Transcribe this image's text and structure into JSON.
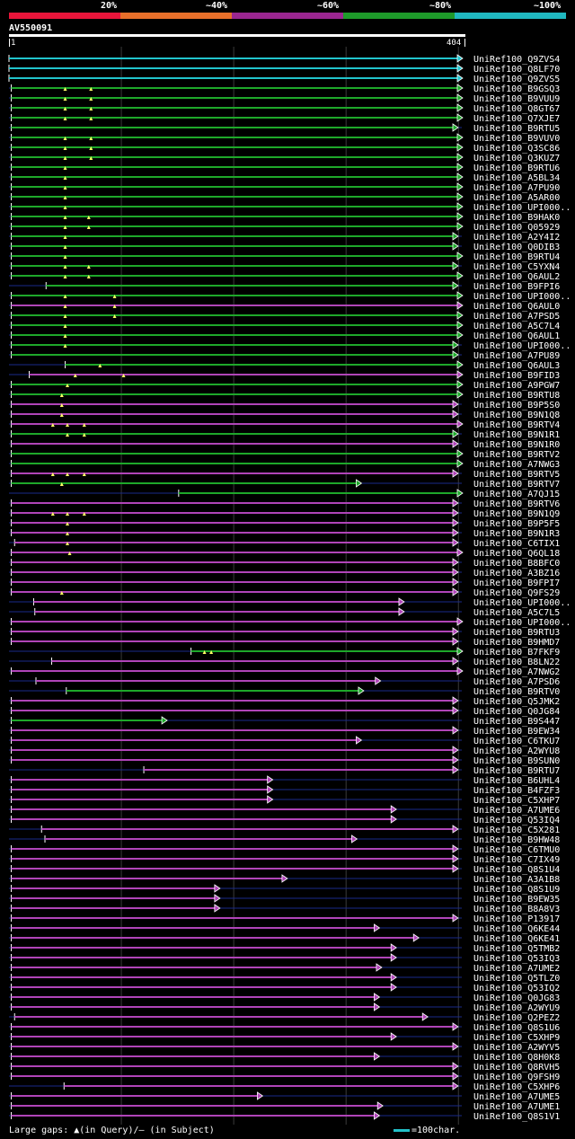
{
  "legend": {
    "colors": [
      "#e8153a",
      "#e8702a",
      "#9a2690",
      "#1e9a2a",
      "#20b8c0"
    ],
    "labels": [
      "20%",
      "~40%",
      "~60%",
      "~80%",
      "~100%"
    ]
  },
  "query": {
    "id": "AV550091",
    "start": "1",
    "end": "404",
    "length": 404
  },
  "footer": {
    "gaps_text": "Large gaps: ▲(in Query)/— (in Subject)",
    "scale_text": "=100char."
  },
  "colors": {
    "cyan": "#21c4cc",
    "green": "#1ea82a",
    "purple": "#b044b8",
    "grid": "#3a3a3a",
    "gap": "#1a2a8a"
  },
  "chart_data": {
    "type": "alignment",
    "x_range": [
      1,
      404
    ],
    "hits": [
      {
        "name": "UniRef100_Q9ZVS4",
        "identity": "~100%",
        "start": 1,
        "end": 404,
        "gaps": []
      },
      {
        "name": "UniRef100_Q8LF70",
        "identity": "~100%",
        "start": 1,
        "end": 404,
        "gaps": []
      },
      {
        "name": "UniRef100_Q9ZVS5",
        "identity": "~100%",
        "start": 1,
        "end": 404,
        "gaps": []
      },
      {
        "name": "UniRef100_B9GSQ3",
        "identity": "~80%",
        "start": 3,
        "end": 404,
        "gaps": [
          51,
          74
        ]
      },
      {
        "name": "UniRef100_B9VUU9",
        "identity": "~80%",
        "start": 3,
        "end": 404,
        "gaps": [
          51,
          74
        ]
      },
      {
        "name": "UniRef100_Q8GT67",
        "identity": "~80%",
        "start": 3,
        "end": 404,
        "gaps": [
          51,
          74
        ]
      },
      {
        "name": "UniRef100_Q7XJE7",
        "identity": "~80%",
        "start": 3,
        "end": 404,
        "gaps": [
          51,
          74
        ]
      },
      {
        "name": "UniRef100_B9RTU5",
        "identity": "~80%",
        "start": 3,
        "end": 400,
        "gaps": []
      },
      {
        "name": "UniRef100_B9VUV0",
        "identity": "~80%",
        "start": 3,
        "end": 404,
        "gaps": [
          51,
          74
        ]
      },
      {
        "name": "UniRef100_Q3SC86",
        "identity": "~80%",
        "start": 3,
        "end": 404,
        "gaps": [
          51,
          74
        ]
      },
      {
        "name": "UniRef100_Q3KUZ7",
        "identity": "~80%",
        "start": 3,
        "end": 404,
        "gaps": [
          51,
          74
        ]
      },
      {
        "name": "UniRef100_B9RTU6",
        "identity": "~80%",
        "start": 3,
        "end": 404,
        "gaps": [
          51
        ]
      },
      {
        "name": "UniRef100_A5BL34",
        "identity": "~80%",
        "start": 3,
        "end": 404,
        "gaps": [
          51
        ]
      },
      {
        "name": "UniRef100_A7PU90",
        "identity": "~80%",
        "start": 3,
        "end": 404,
        "gaps": [
          51
        ]
      },
      {
        "name": "UniRef100_A5AR00",
        "identity": "~80%",
        "start": 3,
        "end": 404,
        "gaps": [
          51
        ]
      },
      {
        "name": "UniRef100_UPI000..",
        "identity": "~80%",
        "start": 3,
        "end": 404,
        "gaps": [
          51
        ]
      },
      {
        "name": "UniRef100_B9HAK0",
        "identity": "~80%",
        "start": 3,
        "end": 404,
        "gaps": [
          51,
          72
        ]
      },
      {
        "name": "UniRef100_Q05929",
        "identity": "~80%",
        "start": 3,
        "end": 404,
        "gaps": [
          51,
          72
        ]
      },
      {
        "name": "UniRef100_A2Y4I2",
        "identity": "~80%",
        "start": 3,
        "end": 400,
        "gaps": [
          51
        ]
      },
      {
        "name": "UniRef100_Q0DIB3",
        "identity": "~80%",
        "start": 3,
        "end": 400,
        "gaps": [
          51
        ]
      },
      {
        "name": "UniRef100_B9RTU4",
        "identity": "~80%",
        "start": 3,
        "end": 404,
        "gaps": [
          51
        ]
      },
      {
        "name": "UniRef100_C5YXN4",
        "identity": "~80%",
        "start": 3,
        "end": 400,
        "gaps": [
          51,
          72
        ]
      },
      {
        "name": "UniRef100_Q6AUL2",
        "identity": "~80%",
        "start": 3,
        "end": 404,
        "gaps": [
          51,
          72
        ]
      },
      {
        "name": "UniRef100_B9FPI6",
        "identity": "~80%",
        "start": 34,
        "end": 400,
        "gaps": []
      },
      {
        "name": "UniRef100_UPI000..",
        "identity": "~80%",
        "start": 3,
        "end": 404,
        "gaps": [
          51,
          95
        ]
      },
      {
        "name": "UniRef100_Q6AUL0",
        "identity": "~60%",
        "start": 3,
        "end": 404,
        "gaps": [
          51,
          95
        ]
      },
      {
        "name": "UniRef100_A7PSD5",
        "identity": "~80%",
        "start": 3,
        "end": 404,
        "gaps": [
          51,
          95
        ]
      },
      {
        "name": "UniRef100_A5C7L4",
        "identity": "~80%",
        "start": 3,
        "end": 404,
        "gaps": [
          51
        ]
      },
      {
        "name": "UniRef100_Q6AUL1",
        "identity": "~80%",
        "start": 3,
        "end": 404,
        "gaps": [
          51
        ]
      },
      {
        "name": "UniRef100_UPI000..",
        "identity": "~80%",
        "start": 3,
        "end": 400,
        "gaps": [
          51
        ]
      },
      {
        "name": "UniRef100_A7PU89",
        "identity": "~80%",
        "start": 3,
        "end": 400,
        "gaps": []
      },
      {
        "name": "UniRef100_Q6AUL3",
        "identity": "~80%",
        "start": 51,
        "end": 404,
        "gaps": [
          82
        ]
      },
      {
        "name": "UniRef100_B9FID3",
        "identity": "~60%",
        "start": 19,
        "end": 404,
        "gaps": [
          60,
          103
        ]
      },
      {
        "name": "UniRef100_A9PGW7",
        "identity": "~80%",
        "start": 3,
        "end": 404,
        "gaps": [
          53
        ]
      },
      {
        "name": "UniRef100_B9RTU8",
        "identity": "~80%",
        "start": 3,
        "end": 404,
        "gaps": [
          48
        ]
      },
      {
        "name": "UniRef100_B9P5S0",
        "identity": "~60%",
        "start": 3,
        "end": 400,
        "gaps": [
          48
        ]
      },
      {
        "name": "UniRef100_B9N1Q8",
        "identity": "~60%",
        "start": 3,
        "end": 400,
        "gaps": [
          48
        ]
      },
      {
        "name": "UniRef100_B9RTV4",
        "identity": "~60%",
        "start": 3,
        "end": 404,
        "gaps": [
          40,
          53,
          68
        ]
      },
      {
        "name": "UniRef100_B9N1R1",
        "identity": "~80%",
        "start": 3,
        "end": 400,
        "gaps": [
          53,
          68
        ]
      },
      {
        "name": "UniRef100_B9N1R0",
        "identity": "~60%",
        "start": 3,
        "end": 400,
        "gaps": []
      },
      {
        "name": "UniRef100_B9RTV2",
        "identity": "~80%",
        "start": 3,
        "end": 404,
        "gaps": []
      },
      {
        "name": "UniRef100_A7NWG3",
        "identity": "~80%",
        "start": 3,
        "end": 404,
        "gaps": []
      },
      {
        "name": "UniRef100_B9RTV5",
        "identity": "~60%",
        "start": 3,
        "end": 400,
        "gaps": [
          40,
          53,
          68
        ]
      },
      {
        "name": "UniRef100_B9RTV7",
        "identity": "~80%",
        "start": 3,
        "end": 314,
        "gaps": [
          48
        ]
      },
      {
        "name": "UniRef100_A7QJ15",
        "identity": "~80%",
        "start": 152,
        "end": 404,
        "gaps": []
      },
      {
        "name": "UniRef100_B9RTV6",
        "identity": "~60%",
        "start": 3,
        "end": 400,
        "gaps": []
      },
      {
        "name": "UniRef100_B9N1Q9",
        "identity": "~60%",
        "start": 3,
        "end": 400,
        "gaps": [
          40,
          53,
          68
        ]
      },
      {
        "name": "UniRef100_B9P5F5",
        "identity": "~60%",
        "start": 3,
        "end": 400,
        "gaps": [
          53
        ]
      },
      {
        "name": "UniRef100_B9N1R3",
        "identity": "~60%",
        "start": 3,
        "end": 400,
        "gaps": [
          53
        ]
      },
      {
        "name": "UniRef100_C6TIX1",
        "identity": "~60%",
        "start": 6,
        "end": 400,
        "gaps": [
          53
        ]
      },
      {
        "name": "UniRef100_Q6QL18",
        "identity": "~60%",
        "start": 3,
        "end": 404,
        "gaps": [
          55
        ]
      },
      {
        "name": "UniRef100_B8BFC0",
        "identity": "~60%",
        "start": 3,
        "end": 400,
        "gaps": []
      },
      {
        "name": "UniRef100_A3BZ16",
        "identity": "~60%",
        "start": 3,
        "end": 400,
        "gaps": []
      },
      {
        "name": "UniRef100_B9FPI7",
        "identity": "~60%",
        "start": 3,
        "end": 400,
        "gaps": []
      },
      {
        "name": "UniRef100_Q9FS29",
        "identity": "~60%",
        "start": 3,
        "end": 400,
        "gaps": [
          48
        ]
      },
      {
        "name": "UniRef100_UPI000..",
        "identity": "~60%",
        "start": 23,
        "end": 352,
        "gaps": []
      },
      {
        "name": "UniRef100_A5C7L5",
        "identity": "~60%",
        "start": 24,
        "end": 352,
        "gaps": []
      },
      {
        "name": "UniRef100_UPI000..",
        "identity": "~60%",
        "start": 3,
        "end": 404,
        "gaps": []
      },
      {
        "name": "UniRef100_B9RTU3",
        "identity": "~60%",
        "start": 3,
        "end": 400,
        "gaps": []
      },
      {
        "name": "UniRef100_B9HMD7",
        "identity": "~60%",
        "start": 3,
        "end": 400,
        "gaps": []
      },
      {
        "name": "UniRef100_B7FKF9",
        "identity": "~80%",
        "start": 163,
        "end": 404,
        "gaps": [
          175,
          181
        ]
      },
      {
        "name": "UniRef100_B8LN22",
        "identity": "~60%",
        "start": 39,
        "end": 400,
        "gaps": []
      },
      {
        "name": "UniRef100_A7NWG2",
        "identity": "~60%",
        "start": 3,
        "end": 404,
        "gaps": []
      },
      {
        "name": "UniRef100_A7PSD6",
        "identity": "~60%",
        "start": 25,
        "end": 331,
        "gaps": []
      },
      {
        "name": "UniRef100_B9RTV0",
        "identity": "~80%",
        "start": 52,
        "end": 316,
        "gaps": []
      },
      {
        "name": "UniRef100_Q5JMK2",
        "identity": "~60%",
        "start": 3,
        "end": 400,
        "gaps": []
      },
      {
        "name": "UniRef100_Q0JG84",
        "identity": "~60%",
        "start": 3,
        "end": 400,
        "gaps": []
      },
      {
        "name": "UniRef100_B9S447",
        "identity": "~80%",
        "start": 3,
        "end": 141,
        "gaps": []
      },
      {
        "name": "UniRef100_B9EW34",
        "identity": "~60%",
        "start": 3,
        "end": 400,
        "gaps": []
      },
      {
        "name": "UniRef100_C6TKU7",
        "identity": "~60%",
        "start": 3,
        "end": 314,
        "gaps": []
      },
      {
        "name": "UniRef100_A2WYU8",
        "identity": "~60%",
        "start": 3,
        "end": 400,
        "gaps": []
      },
      {
        "name": "UniRef100_B9SUN0",
        "identity": "~60%",
        "start": 3,
        "end": 400,
        "gaps": []
      },
      {
        "name": "UniRef100_B9RTU7",
        "identity": "~60%",
        "start": 121,
        "end": 400,
        "gaps": []
      },
      {
        "name": "UniRef100_B6UHL4",
        "identity": "~60%",
        "start": 3,
        "end": 235,
        "gaps": []
      },
      {
        "name": "UniRef100_B4FZF3",
        "identity": "~60%",
        "start": 3,
        "end": 235,
        "gaps": []
      },
      {
        "name": "UniRef100_C5XHP7",
        "identity": "~60%",
        "start": 3,
        "end": 235,
        "gaps": []
      },
      {
        "name": "UniRef100_A7UME6",
        "identity": "~60%",
        "start": 3,
        "end": 345,
        "gaps": []
      },
      {
        "name": "UniRef100_Q53IQ4",
        "identity": "~60%",
        "start": 3,
        "end": 345,
        "gaps": []
      },
      {
        "name": "UniRef100_C5X281",
        "identity": "~60%",
        "start": 30,
        "end": 400,
        "gaps": []
      },
      {
        "name": "UniRef100_B9HW48",
        "identity": "~60%",
        "start": 33,
        "end": 310,
        "gaps": []
      },
      {
        "name": "UniRef100_C6TMU0",
        "identity": "~60%",
        "start": 3,
        "end": 400,
        "gaps": []
      },
      {
        "name": "UniRef100_C7IX49",
        "identity": "~60%",
        "start": 3,
        "end": 400,
        "gaps": []
      },
      {
        "name": "UniRef100_Q8S1U4",
        "identity": "~60%",
        "start": 3,
        "end": 400,
        "gaps": []
      },
      {
        "name": "UniRef100_A3A1B8",
        "identity": "~60%",
        "start": 3,
        "end": 248,
        "gaps": []
      },
      {
        "name": "UniRef100_Q8S1U9",
        "identity": "~60%",
        "start": 3,
        "end": 188,
        "gaps": []
      },
      {
        "name": "UniRef100_B9EW35",
        "identity": "~60%",
        "start": 3,
        "end": 188,
        "gaps": []
      },
      {
        "name": "UniRef100_B8A8V3",
        "identity": "~60%",
        "start": 3,
        "end": 188,
        "gaps": []
      },
      {
        "name": "UniRef100_P13917",
        "identity": "~60%",
        "start": 3,
        "end": 400,
        "gaps": []
      },
      {
        "name": "UniRef100_Q6KE44",
        "identity": "~60%",
        "start": 3,
        "end": 330,
        "gaps": []
      },
      {
        "name": "UniRef100_Q6KE41",
        "identity": "~60%",
        "start": 3,
        "end": 365,
        "gaps": []
      },
      {
        "name": "UniRef100_Q5TMB2",
        "identity": "~60%",
        "start": 3,
        "end": 345,
        "gaps": []
      },
      {
        "name": "UniRef100_Q53IQ3",
        "identity": "~60%",
        "start": 3,
        "end": 345,
        "gaps": []
      },
      {
        "name": "UniRef100_A7UME2",
        "identity": "~60%",
        "start": 3,
        "end": 332,
        "gaps": []
      },
      {
        "name": "UniRef100_Q5TLZ0",
        "identity": "~60%",
        "start": 3,
        "end": 345,
        "gaps": []
      },
      {
        "name": "UniRef100_Q53IQ2",
        "identity": "~60%",
        "start": 3,
        "end": 345,
        "gaps": []
      },
      {
        "name": "UniRef100_Q0JG83",
        "identity": "~60%",
        "start": 3,
        "end": 330,
        "gaps": []
      },
      {
        "name": "UniRef100_A2WYU9",
        "identity": "~60%",
        "start": 3,
        "end": 330,
        "gaps": []
      },
      {
        "name": "UniRef100_Q2PEZ2",
        "identity": "~60%",
        "start": 6,
        "end": 373,
        "gaps": []
      },
      {
        "name": "UniRef100_Q8S1U6",
        "identity": "~60%",
        "start": 3,
        "end": 400,
        "gaps": []
      },
      {
        "name": "UniRef100_C5XHP9",
        "identity": "~60%",
        "start": 3,
        "end": 345,
        "gaps": []
      },
      {
        "name": "UniRef100_A2WYV5",
        "identity": "~60%",
        "start": 3,
        "end": 400,
        "gaps": []
      },
      {
        "name": "UniRef100_Q8H0K8",
        "identity": "~60%",
        "start": 3,
        "end": 330,
        "gaps": []
      },
      {
        "name": "UniRef100_Q8RVH5",
        "identity": "~60%",
        "start": 3,
        "end": 400,
        "gaps": []
      },
      {
        "name": "UniRef100_Q9FSH9",
        "identity": "~60%",
        "start": 3,
        "end": 400,
        "gaps": []
      },
      {
        "name": "UniRef100_C5XHP6",
        "identity": "~60%",
        "start": 50,
        "end": 400,
        "gaps": []
      },
      {
        "name": "UniRef100_A7UME5",
        "identity": "~60%",
        "start": 3,
        "end": 226,
        "gaps": []
      },
      {
        "name": "UniRef100_A7UME1",
        "identity": "~60%",
        "start": 3,
        "end": 333,
        "gaps": []
      },
      {
        "name": "UniRef100_Q8S1V1",
        "identity": "~60%",
        "start": 3,
        "end": 330,
        "gaps": []
      }
    ]
  }
}
